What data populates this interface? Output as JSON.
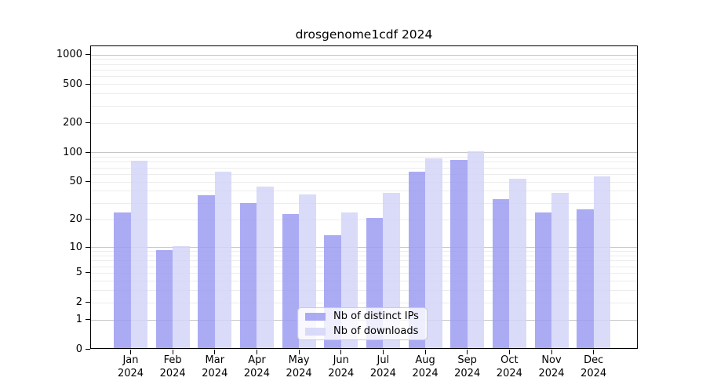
{
  "title": "drosgenome1cdf 2024",
  "chart_data": {
    "type": "bar",
    "title": "drosgenome1cdf 2024",
    "categories": [
      "Jan",
      "Feb",
      "Mar",
      "Apr",
      "May",
      "Jun",
      "Jul",
      "Aug",
      "Sep",
      "Oct",
      "Nov",
      "Dec"
    ],
    "year": "2024",
    "series": [
      {
        "name": "Nb of distinct IPs",
        "color": "#9c9cf2",
        "values": [
          23,
          9,
          35,
          29,
          22,
          13,
          20,
          62,
          82,
          32,
          23,
          25
        ]
      },
      {
        "name": "Nb of downloads",
        "color": "#d3d3f8",
        "values": [
          80,
          10,
          62,
          43,
          36,
          23,
          37,
          85,
          100,
          52,
          37,
          55
        ]
      }
    ],
    "xlabel": "",
    "ylabel": "",
    "yscale": "log1p",
    "yticks": [
      0,
      1,
      2,
      5,
      10,
      20,
      50,
      100,
      200,
      500,
      1000
    ],
    "ylim": [
      0,
      1237
    ],
    "grid": true,
    "legend_position": "lower-center"
  }
}
